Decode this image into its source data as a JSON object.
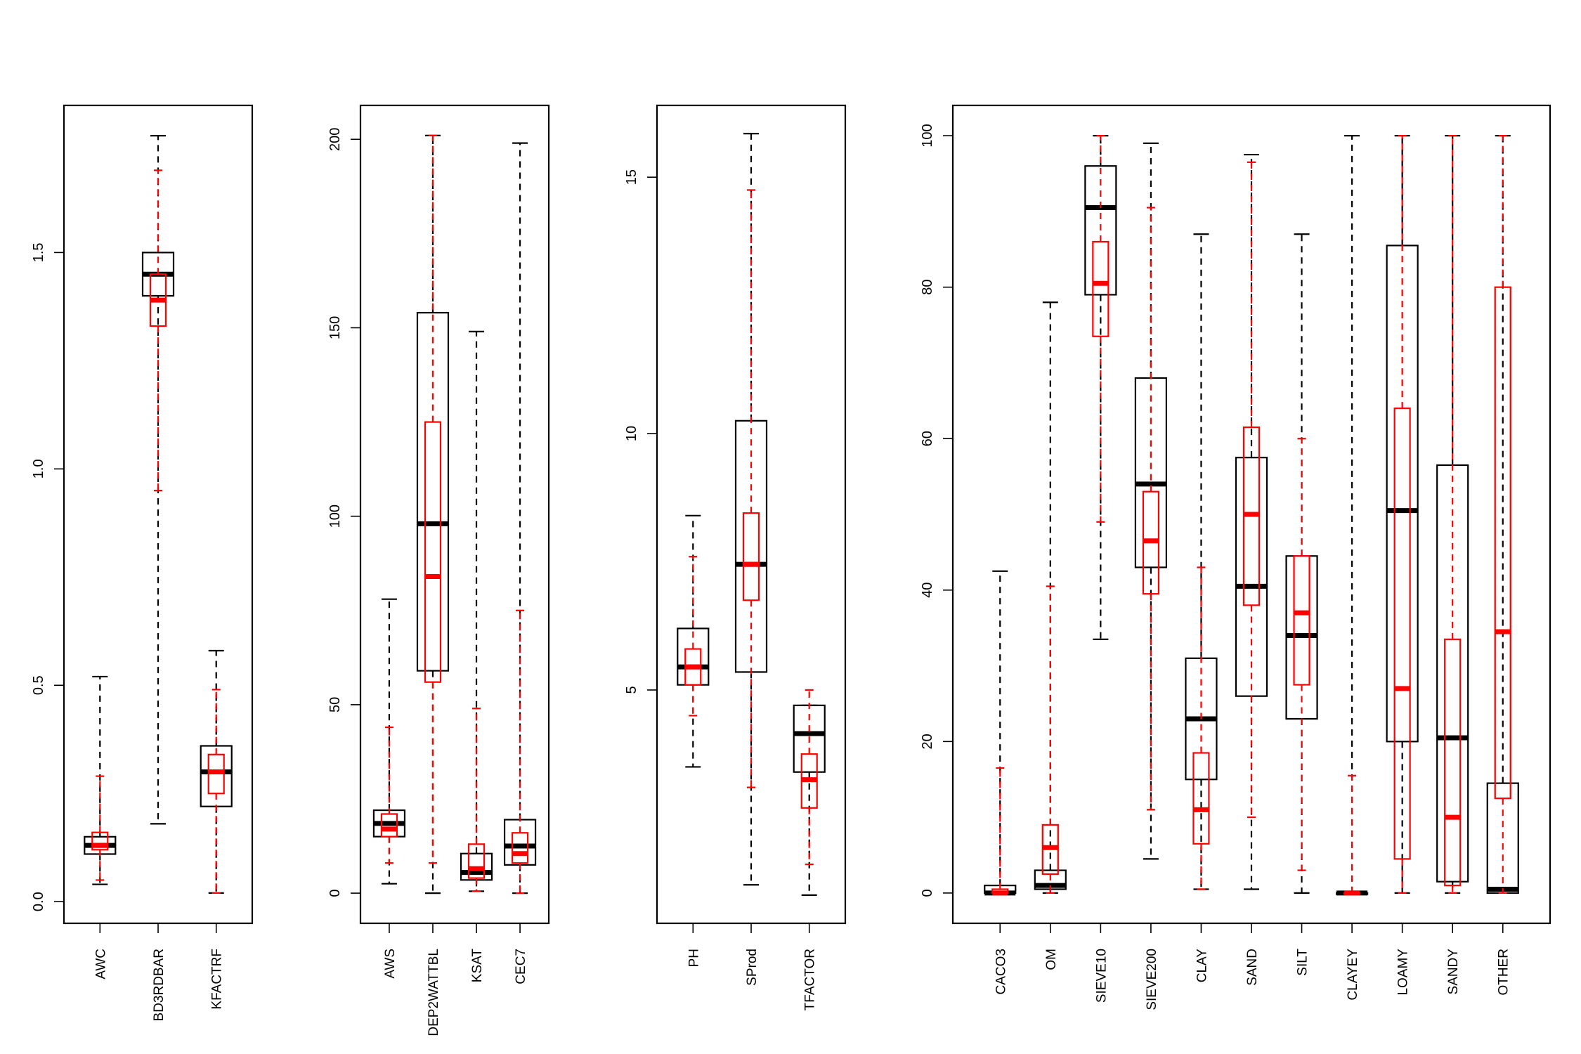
{
  "chart_data": [
    {
      "type": "boxplot",
      "title": "",
      "xlabel": "",
      "ylabel": "",
      "ylim": [
        -0.05,
        1.84
      ],
      "yticks": [
        0.0,
        0.5,
        1.0,
        1.5
      ],
      "ytick_labels": [
        "0.0",
        "0.5",
        "1.0",
        "1.5"
      ],
      "categories": [
        "AWC",
        "BD3RDBAR",
        "KFACTRF"
      ],
      "series": [
        {
          "color": "#000000",
          "boxes": [
            {
              "min": 0.04,
              "q1": 0.11,
              "median": 0.13,
              "q3": 0.15,
              "max": 0.52
            },
            {
              "min": 0.18,
              "q1": 1.4,
              "median": 1.45,
              "q3": 1.5,
              "max": 1.77
            },
            {
              "min": 0.02,
              "q1": 0.22,
              "median": 0.3,
              "q3": 0.36,
              "max": 0.58
            }
          ]
        },
        {
          "color": "#ff0000",
          "boxes": [
            {
              "min": 0.05,
              "q1": 0.12,
              "median": 0.13,
              "q3": 0.16,
              "max": 0.29
            },
            {
              "min": 0.95,
              "q1": 1.33,
              "median": 1.39,
              "q3": 1.45,
              "max": 1.69
            },
            {
              "min": 0.02,
              "q1": 0.25,
              "median": 0.3,
              "q3": 0.34,
              "max": 0.49
            }
          ]
        }
      ]
    },
    {
      "type": "boxplot",
      "title": "",
      "xlabel": "",
      "ylabel": "",
      "ylim": [
        -8,
        209
      ],
      "yticks": [
        0,
        50,
        100,
        150,
        200
      ],
      "ytick_labels": [
        "0",
        "50",
        "100",
        "150",
        "200"
      ],
      "categories": [
        "AWS",
        "DEP2WATTBL",
        "KSAT",
        "CEC7"
      ],
      "series": [
        {
          "color": "#000000",
          "boxes": [
            {
              "min": 2.5,
              "q1": 15,
              "median": 18.5,
              "q3": 22,
              "max": 78
            },
            {
              "min": 0,
              "q1": 59,
              "median": 98,
              "q3": 154,
              "max": 201
            },
            {
              "min": 0.5,
              "q1": 3.5,
              "median": 5.5,
              "q3": 10.5,
              "max": 149
            },
            {
              "min": 0,
              "q1": 7.5,
              "median": 12.5,
              "q3": 19.5,
              "max": 199
            }
          ]
        },
        {
          "color": "#ff0000",
          "boxes": [
            {
              "min": 8,
              "q1": 15,
              "median": 17,
              "q3": 21,
              "max": 44
            },
            {
              "min": 8,
              "q1": 56,
              "median": 84,
              "q3": 125,
              "max": 201
            },
            {
              "min": 0.5,
              "q1": 4,
              "median": 6.5,
              "q3": 13,
              "max": 49
            },
            {
              "min": 0,
              "q1": 8,
              "median": 10.5,
              "q3": 16,
              "max": 75
            }
          ]
        }
      ]
    },
    {
      "type": "boxplot",
      "title": "",
      "xlabel": "",
      "ylabel": "",
      "ylim": [
        0.45,
        16.4
      ],
      "yticks": [
        5,
        10,
        15
      ],
      "ytick_labels": [
        "5",
        "10",
        "15"
      ],
      "categories": [
        "PH",
        "SProd",
        "TFACTOR"
      ],
      "series": [
        {
          "color": "#000000",
          "boxes": [
            {
              "min": 3.5,
              "q1": 5.1,
              "median": 5.45,
              "q3": 6.2,
              "max": 8.4
            },
            {
              "min": 1.2,
              "q1": 5.35,
              "median": 7.45,
              "q3": 10.25,
              "max": 15.85
            },
            {
              "min": 1.0,
              "q1": 3.4,
              "median": 4.15,
              "q3": 4.7,
              "max": 4.7
            }
          ]
        },
        {
          "color": "#ff0000",
          "boxes": [
            {
              "min": 4.5,
              "q1": 5.1,
              "median": 5.45,
              "q3": 5.8,
              "max": 7.6
            },
            {
              "min": 3.1,
              "q1": 6.75,
              "median": 7.45,
              "q3": 8.45,
              "max": 14.75
            },
            {
              "min": 1.6,
              "q1": 2.7,
              "median": 3.25,
              "q3": 3.75,
              "max": 5.0
            }
          ]
        }
      ]
    },
    {
      "type": "boxplot",
      "title": "",
      "xlabel": "",
      "ylabel": "",
      "ylim": [
        -4,
        104
      ],
      "yticks": [
        0,
        20,
        40,
        60,
        80,
        100
      ],
      "ytick_labels": [
        "0",
        "20",
        "40",
        "60",
        "80",
        "100"
      ],
      "categories": [
        "CACO3",
        "OM",
        "SIEVE10",
        "SIEVE200",
        "CLAY",
        "SAND",
        "SILT",
        "CLAYEY",
        "LOAMY",
        "SANDY",
        "OTHER"
      ],
      "series": [
        {
          "color": "#000000",
          "boxes": [
            {
              "min": 0,
              "q1": 0,
              "median": 0,
              "q3": 1,
              "max": 42.5
            },
            {
              "min": 0,
              "q1": 0.5,
              "median": 1,
              "q3": 3,
              "max": 78
            },
            {
              "min": 33.5,
              "q1": 79,
              "median": 90.5,
              "q3": 96,
              "max": 100
            },
            {
              "min": 4.5,
              "q1": 43,
              "median": 54,
              "q3": 68,
              "max": 99
            },
            {
              "min": 0.5,
              "q1": 15,
              "median": 23,
              "q3": 31,
              "max": 87
            },
            {
              "min": 0.5,
              "q1": 26,
              "median": 40.5,
              "q3": 57.5,
              "max": 97.5
            },
            {
              "min": 0,
              "q1": 23,
              "median": 34,
              "q3": 44.5,
              "max": 87
            },
            {
              "min": 0,
              "q1": 0,
              "median": 0,
              "q3": 0,
              "max": 100
            },
            {
              "min": 0,
              "q1": 20,
              "median": 50.5,
              "q3": 85.5,
              "max": 100
            },
            {
              "min": 0,
              "q1": 1.5,
              "median": 20.5,
              "q3": 56.5,
              "max": 100
            },
            {
              "min": 0,
              "q1": 0,
              "median": 0.5,
              "q3": 14.5,
              "max": 100
            }
          ]
        },
        {
          "color": "#ff0000",
          "boxes": [
            {
              "min": 0,
              "q1": 0,
              "median": 0,
              "q3": 0.5,
              "max": 16.5
            },
            {
              "min": 0,
              "q1": 2.5,
              "median": 6,
              "q3": 9,
              "max": 40.5
            },
            {
              "min": 49,
              "q1": 73.5,
              "median": 80.5,
              "q3": 86,
              "max": 100
            },
            {
              "min": 11,
              "q1": 39.5,
              "median": 46.5,
              "q3": 53,
              "max": 90.5
            },
            {
              "min": 0.5,
              "q1": 6.5,
              "median": 11,
              "q3": 18.5,
              "max": 43
            },
            {
              "min": 10,
              "q1": 38,
              "median": 50,
              "q3": 61.5,
              "max": 96.5
            },
            {
              "min": 3,
              "q1": 27.5,
              "median": 37,
              "q3": 44.5,
              "max": 60
            },
            {
              "min": 0,
              "q1": 0,
              "median": 0,
              "q3": 0,
              "max": 15.5
            },
            {
              "min": 0,
              "q1": 4.5,
              "median": 27,
              "q3": 64,
              "max": 100
            },
            {
              "min": 0,
              "q1": 1,
              "median": 10,
              "q3": 33.5,
              "max": 100
            },
            {
              "min": 0,
              "q1": 12.5,
              "median": 34.5,
              "q3": 80,
              "max": 100
            }
          ]
        }
      ]
    }
  ]
}
